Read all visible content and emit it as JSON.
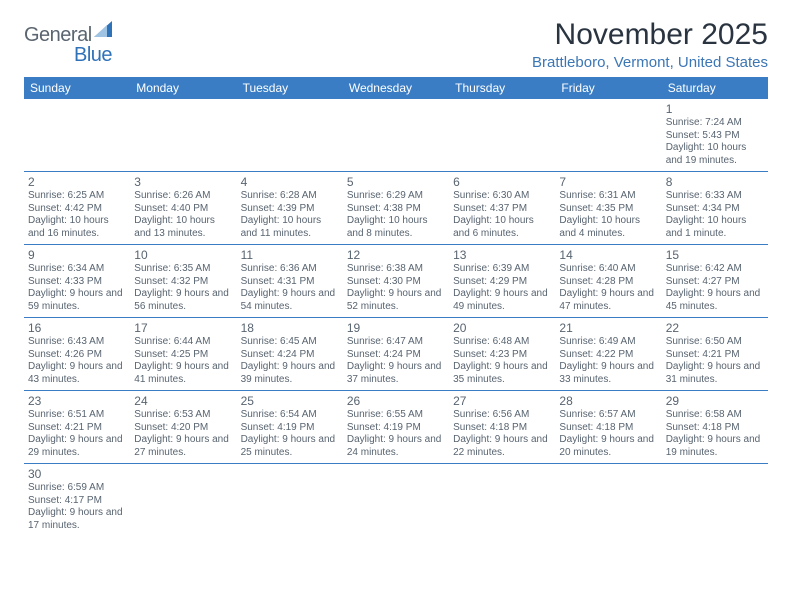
{
  "logo": {
    "general": "General",
    "blue": "Blue"
  },
  "title": "November 2025",
  "location": "Brattleboro, Vermont, United States",
  "header_color": "#3b7dc4",
  "text_color": "#586470",
  "accent_color": "#3b76b5",
  "day_headers": [
    "Sunday",
    "Monday",
    "Tuesday",
    "Wednesday",
    "Thursday",
    "Friday",
    "Saturday"
  ],
  "weeks": [
    [
      null,
      null,
      null,
      null,
      null,
      null,
      {
        "n": "1",
        "sunrise": "Sunrise: 7:24 AM",
        "sunset": "Sunset: 5:43 PM",
        "daylight": "Daylight: 10 hours and 19 minutes."
      }
    ],
    [
      {
        "n": "2",
        "sunrise": "Sunrise: 6:25 AM",
        "sunset": "Sunset: 4:42 PM",
        "daylight": "Daylight: 10 hours and 16 minutes."
      },
      {
        "n": "3",
        "sunrise": "Sunrise: 6:26 AM",
        "sunset": "Sunset: 4:40 PM",
        "daylight": "Daylight: 10 hours and 13 minutes."
      },
      {
        "n": "4",
        "sunrise": "Sunrise: 6:28 AM",
        "sunset": "Sunset: 4:39 PM",
        "daylight": "Daylight: 10 hours and 11 minutes."
      },
      {
        "n": "5",
        "sunrise": "Sunrise: 6:29 AM",
        "sunset": "Sunset: 4:38 PM",
        "daylight": "Daylight: 10 hours and 8 minutes."
      },
      {
        "n": "6",
        "sunrise": "Sunrise: 6:30 AM",
        "sunset": "Sunset: 4:37 PM",
        "daylight": "Daylight: 10 hours and 6 minutes."
      },
      {
        "n": "7",
        "sunrise": "Sunrise: 6:31 AM",
        "sunset": "Sunset: 4:35 PM",
        "daylight": "Daylight: 10 hours and 4 minutes."
      },
      {
        "n": "8",
        "sunrise": "Sunrise: 6:33 AM",
        "sunset": "Sunset: 4:34 PM",
        "daylight": "Daylight: 10 hours and 1 minute."
      }
    ],
    [
      {
        "n": "9",
        "sunrise": "Sunrise: 6:34 AM",
        "sunset": "Sunset: 4:33 PM",
        "daylight": "Daylight: 9 hours and 59 minutes."
      },
      {
        "n": "10",
        "sunrise": "Sunrise: 6:35 AM",
        "sunset": "Sunset: 4:32 PM",
        "daylight": "Daylight: 9 hours and 56 minutes."
      },
      {
        "n": "11",
        "sunrise": "Sunrise: 6:36 AM",
        "sunset": "Sunset: 4:31 PM",
        "daylight": "Daylight: 9 hours and 54 minutes."
      },
      {
        "n": "12",
        "sunrise": "Sunrise: 6:38 AM",
        "sunset": "Sunset: 4:30 PM",
        "daylight": "Daylight: 9 hours and 52 minutes."
      },
      {
        "n": "13",
        "sunrise": "Sunrise: 6:39 AM",
        "sunset": "Sunset: 4:29 PM",
        "daylight": "Daylight: 9 hours and 49 minutes."
      },
      {
        "n": "14",
        "sunrise": "Sunrise: 6:40 AM",
        "sunset": "Sunset: 4:28 PM",
        "daylight": "Daylight: 9 hours and 47 minutes."
      },
      {
        "n": "15",
        "sunrise": "Sunrise: 6:42 AM",
        "sunset": "Sunset: 4:27 PM",
        "daylight": "Daylight: 9 hours and 45 minutes."
      }
    ],
    [
      {
        "n": "16",
        "sunrise": "Sunrise: 6:43 AM",
        "sunset": "Sunset: 4:26 PM",
        "daylight": "Daylight: 9 hours and 43 minutes."
      },
      {
        "n": "17",
        "sunrise": "Sunrise: 6:44 AM",
        "sunset": "Sunset: 4:25 PM",
        "daylight": "Daylight: 9 hours and 41 minutes."
      },
      {
        "n": "18",
        "sunrise": "Sunrise: 6:45 AM",
        "sunset": "Sunset: 4:24 PM",
        "daylight": "Daylight: 9 hours and 39 minutes."
      },
      {
        "n": "19",
        "sunrise": "Sunrise: 6:47 AM",
        "sunset": "Sunset: 4:24 PM",
        "daylight": "Daylight: 9 hours and 37 minutes."
      },
      {
        "n": "20",
        "sunrise": "Sunrise: 6:48 AM",
        "sunset": "Sunset: 4:23 PM",
        "daylight": "Daylight: 9 hours and 35 minutes."
      },
      {
        "n": "21",
        "sunrise": "Sunrise: 6:49 AM",
        "sunset": "Sunset: 4:22 PM",
        "daylight": "Daylight: 9 hours and 33 minutes."
      },
      {
        "n": "22",
        "sunrise": "Sunrise: 6:50 AM",
        "sunset": "Sunset: 4:21 PM",
        "daylight": "Daylight: 9 hours and 31 minutes."
      }
    ],
    [
      {
        "n": "23",
        "sunrise": "Sunrise: 6:51 AM",
        "sunset": "Sunset: 4:21 PM",
        "daylight": "Daylight: 9 hours and 29 minutes."
      },
      {
        "n": "24",
        "sunrise": "Sunrise: 6:53 AM",
        "sunset": "Sunset: 4:20 PM",
        "daylight": "Daylight: 9 hours and 27 minutes."
      },
      {
        "n": "25",
        "sunrise": "Sunrise: 6:54 AM",
        "sunset": "Sunset: 4:19 PM",
        "daylight": "Daylight: 9 hours and 25 minutes."
      },
      {
        "n": "26",
        "sunrise": "Sunrise: 6:55 AM",
        "sunset": "Sunset: 4:19 PM",
        "daylight": "Daylight: 9 hours and 24 minutes."
      },
      {
        "n": "27",
        "sunrise": "Sunrise: 6:56 AM",
        "sunset": "Sunset: 4:18 PM",
        "daylight": "Daylight: 9 hours and 22 minutes."
      },
      {
        "n": "28",
        "sunrise": "Sunrise: 6:57 AM",
        "sunset": "Sunset: 4:18 PM",
        "daylight": "Daylight: 9 hours and 20 minutes."
      },
      {
        "n": "29",
        "sunrise": "Sunrise: 6:58 AM",
        "sunset": "Sunset: 4:18 PM",
        "daylight": "Daylight: 9 hours and 19 minutes."
      }
    ],
    [
      {
        "n": "30",
        "sunrise": "Sunrise: 6:59 AM",
        "sunset": "Sunset: 4:17 PM",
        "daylight": "Daylight: 9 hours and 17 minutes."
      },
      null,
      null,
      null,
      null,
      null,
      null
    ]
  ]
}
